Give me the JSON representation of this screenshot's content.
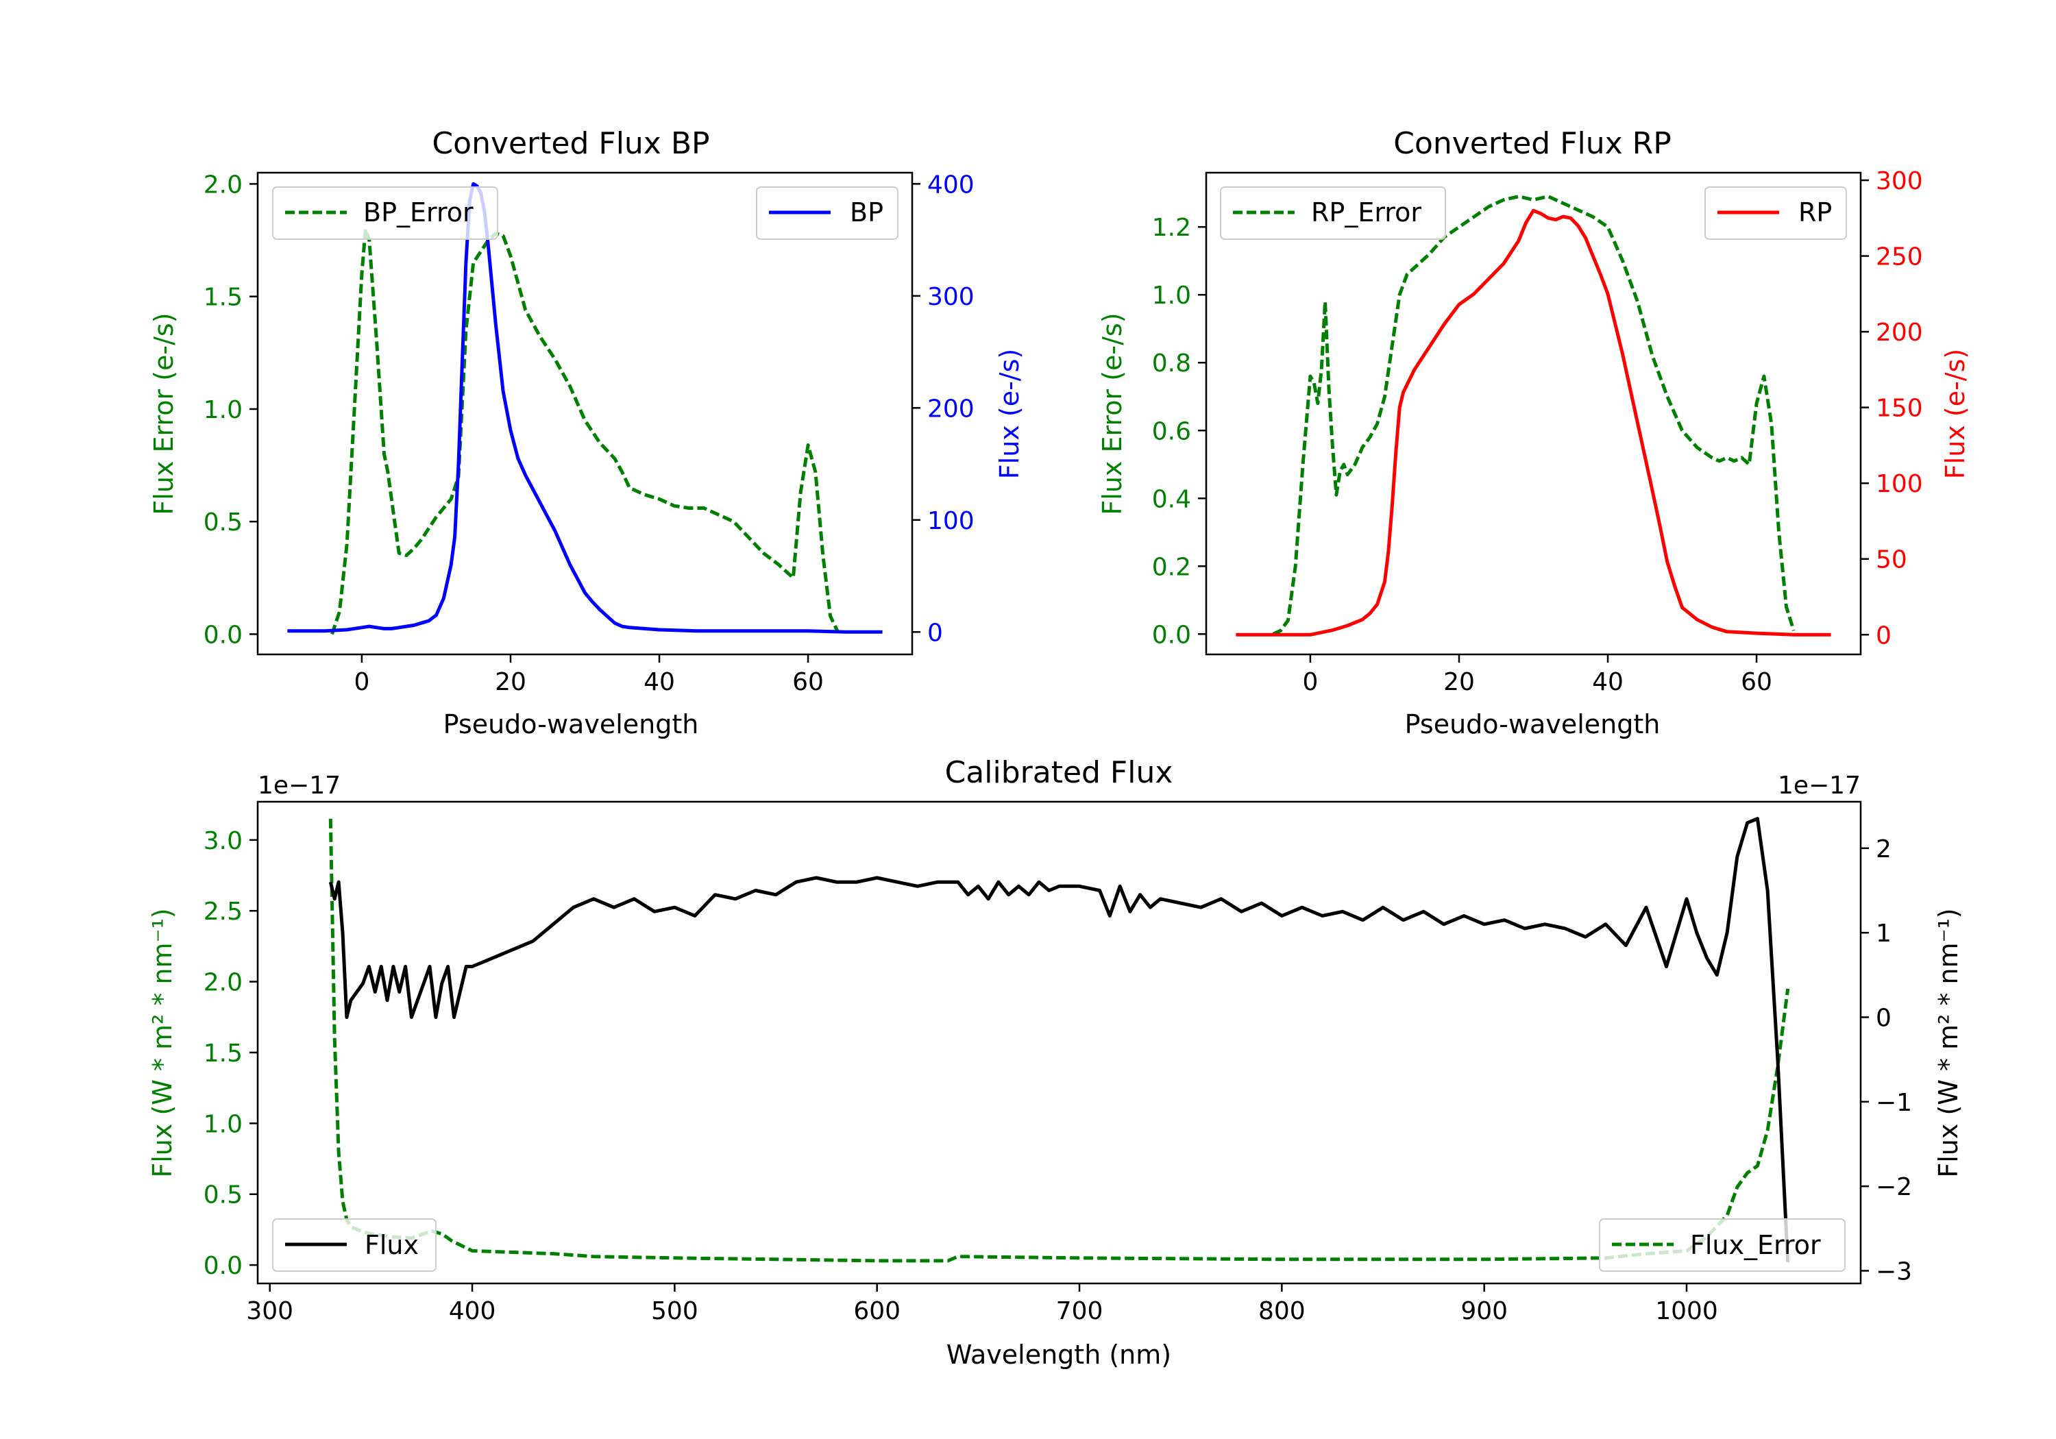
{
  "colors": {
    "green": "#008000",
    "blue": "#0000ff",
    "red": "#ff0000",
    "black": "#000000"
  },
  "chart_data": [
    {
      "id": "bp",
      "type": "line",
      "title": "Converted Flux BP",
      "xlabel": "Pseudo-wavelength",
      "ylabel_left": "Flux Error (e-/s)",
      "ylabel_right": "Flux (e-/s)",
      "xlim": [
        -14,
        74
      ],
      "ylim_left": [
        -0.09,
        2.05
      ],
      "ylim_right": [
        -20,
        410
      ],
      "xticks": [
        0,
        20,
        40,
        60
      ],
      "yticks_left": [
        0.0,
        0.5,
        1.0,
        1.5,
        2.0
      ],
      "yticks_left_labels": [
        "0.0",
        "0.5",
        "1.0",
        "1.5",
        "2.0"
      ],
      "yticks_right": [
        0,
        100,
        200,
        300,
        400
      ],
      "yticks_right_labels": [
        "0",
        "100",
        "200",
        "300",
        "400"
      ],
      "left_color": "green",
      "right_color": "blue",
      "legend_left": {
        "label": "BP_Error",
        "position": "upper-left"
      },
      "legend_right": {
        "label": "BP",
        "position": "upper-right"
      },
      "series": [
        {
          "name": "BP_Error",
          "axis": "left",
          "style": "dashed",
          "color": "green",
          "x": [
            -4,
            -3,
            -2,
            -1,
            0,
            0.5,
            1,
            2,
            3,
            3.5,
            4,
            5,
            6,
            7,
            8,
            10,
            12,
            13,
            14,
            15,
            16,
            17,
            18,
            19,
            20,
            22,
            24,
            26,
            28,
            30,
            32,
            34,
            35,
            36,
            38,
            40,
            42,
            44,
            46,
            48,
            50,
            52,
            54,
            56,
            57,
            58,
            59,
            60,
            61,
            62,
            63,
            64
          ],
          "values": [
            0,
            0.1,
            0.4,
            1.0,
            1.6,
            1.8,
            1.75,
            1.3,
            0.8,
            0.72,
            0.6,
            0.36,
            0.35,
            0.38,
            0.42,
            0.52,
            0.6,
            0.7,
            1.35,
            1.65,
            1.7,
            1.75,
            1.78,
            1.77,
            1.68,
            1.44,
            1.32,
            1.22,
            1.1,
            0.95,
            0.85,
            0.78,
            0.72,
            0.65,
            0.62,
            0.6,
            0.57,
            0.56,
            0.56,
            0.53,
            0.5,
            0.43,
            0.36,
            0.31,
            0.28,
            0.25,
            0.63,
            0.84,
            0.72,
            0.35,
            0.08,
            0.01
          ]
        },
        {
          "name": "BP",
          "axis": "right",
          "style": "solid",
          "color": "blue",
          "x": [
            -10,
            -5,
            -2,
            0,
            1,
            2,
            3,
            4,
            5,
            6,
            7,
            8,
            9,
            10,
            11,
            12,
            12.5,
            13,
            13.5,
            14,
            14.5,
            15,
            15.5,
            16,
            16.5,
            17,
            18,
            19,
            20,
            21,
            22,
            24,
            26,
            28,
            30,
            31,
            32,
            34,
            35,
            36,
            38,
            40,
            45,
            50,
            55,
            60,
            65,
            70
          ],
          "values": [
            1,
            1,
            2,
            4,
            5,
            4,
            3,
            3,
            4,
            5,
            6,
            8,
            10,
            15,
            30,
            60,
            85,
            150,
            240,
            330,
            385,
            400,
            398,
            392,
            375,
            345,
            275,
            215,
            180,
            155,
            140,
            115,
            90,
            60,
            35,
            27,
            20,
            8,
            5,
            4,
            3,
            2,
            1,
            1,
            1,
            1,
            0,
            0
          ]
        }
      ]
    },
    {
      "id": "rp",
      "type": "line",
      "title": "Converted Flux RP",
      "xlabel": "Pseudo-wavelength",
      "ylabel_left": "Flux Error (e-/s)",
      "ylabel_right": "Flux (e-/s)",
      "xlim": [
        -14,
        74
      ],
      "ylim_left": [
        -0.06,
        1.36
      ],
      "ylim_right": [
        -13,
        305
      ],
      "xticks": [
        0,
        20,
        40,
        60
      ],
      "yticks_left": [
        0.0,
        0.2,
        0.4,
        0.6,
        0.8,
        1.0,
        1.2
      ],
      "yticks_left_labels": [
        "0.0",
        "0.2",
        "0.4",
        "0.6",
        "0.8",
        "1.0",
        "1.2"
      ],
      "yticks_right": [
        0,
        50,
        100,
        150,
        200,
        250,
        300
      ],
      "yticks_right_labels": [
        "0",
        "50",
        "100",
        "150",
        "200",
        "250",
        "300"
      ],
      "left_color": "green",
      "right_color": "red",
      "legend_left": {
        "label": "RP_Error",
        "position": "upper-left"
      },
      "legend_right": {
        "label": "RP",
        "position": "upper-right"
      },
      "series": [
        {
          "name": "RP_Error",
          "axis": "left",
          "style": "dashed",
          "color": "green",
          "x": [
            -5,
            -4,
            -3,
            -2,
            -1,
            0,
            0.5,
            1,
            1.5,
            2,
            2.5,
            3,
            3.5,
            4,
            4.5,
            5,
            6,
            7,
            8,
            9,
            10,
            11,
            12,
            13,
            14,
            16,
            18,
            20,
            22,
            24,
            26,
            28,
            30,
            32,
            34,
            36,
            38,
            40,
            42,
            44,
            46,
            48,
            50,
            52,
            54,
            55,
            56,
            57,
            58,
            59,
            60,
            61,
            62,
            63,
            64,
            65
          ],
          "values": [
            0,
            0.01,
            0.04,
            0.2,
            0.5,
            0.76,
            0.74,
            0.68,
            0.78,
            0.98,
            0.72,
            0.55,
            0.41,
            0.48,
            0.5,
            0.47,
            0.5,
            0.55,
            0.58,
            0.62,
            0.7,
            0.85,
            1.0,
            1.06,
            1.08,
            1.12,
            1.17,
            1.2,
            1.23,
            1.26,
            1.28,
            1.29,
            1.28,
            1.29,
            1.27,
            1.25,
            1.23,
            1.2,
            1.1,
            0.98,
            0.82,
            0.7,
            0.6,
            0.55,
            0.52,
            0.51,
            0.52,
            0.51,
            0.52,
            0.5,
            0.68,
            0.76,
            0.62,
            0.3,
            0.08,
            0.01
          ]
        },
        {
          "name": "RP",
          "axis": "right",
          "style": "solid",
          "color": "red",
          "x": [
            -10,
            -5,
            0,
            3,
            5,
            7,
            8,
            9,
            10,
            10.5,
            11,
            11.5,
            12,
            12.5,
            13,
            14,
            16,
            18,
            20,
            22,
            24,
            26,
            28,
            29,
            30,
            31,
            32,
            33,
            34,
            35,
            36,
            37,
            38,
            39,
            40,
            42,
            44,
            46,
            47,
            48,
            49,
            50,
            52,
            54,
            56,
            60,
            65,
            70
          ],
          "values": [
            0,
            0,
            0,
            3,
            6,
            10,
            14,
            20,
            35,
            55,
            85,
            120,
            150,
            160,
            165,
            175,
            190,
            205,
            218,
            225,
            235,
            245,
            260,
            272,
            280,
            278,
            275,
            274,
            276,
            275,
            270,
            262,
            250,
            238,
            225,
            185,
            140,
            95,
            72,
            48,
            32,
            18,
            10,
            5,
            2,
            1,
            0,
            0
          ]
        }
      ]
    },
    {
      "id": "cal",
      "type": "line",
      "title": "Calibrated Flux",
      "xlabel": "Wavelength (nm)",
      "ylabel_left": "Flux (W * m² * nm⁻¹)",
      "ylabel_right": "Flux (W * m² * nm⁻¹)",
      "offset_left": "1e−17",
      "offset_right": "1e−17",
      "xlim": [
        294,
        1086
      ],
      "ylim_left": [
        -0.13,
        3.27
      ],
      "ylim_right": [
        -3.15,
        2.55
      ],
      "xticks": [
        300,
        400,
        500,
        600,
        700,
        800,
        900,
        1000
      ],
      "yticks_left": [
        0.0,
        0.5,
        1.0,
        1.5,
        2.0,
        2.5,
        3.0
      ],
      "yticks_left_labels": [
        "0.0",
        "0.5",
        "1.0",
        "1.5",
        "2.0",
        "2.5",
        "3.0"
      ],
      "yticks_right": [
        -3,
        -2,
        -1,
        0,
        1,
        2
      ],
      "yticks_right_labels": [
        "−3",
        "−2",
        "−1",
        "0",
        "1",
        "2"
      ],
      "left_color": "green",
      "right_color": "black",
      "legend_left": {
        "label": "Flux",
        "position": "lower-left"
      },
      "legend_right": {
        "label": "Flux_Error",
        "position": "lower-right"
      },
      "series": [
        {
          "name": "Flux_Error",
          "axis": "left",
          "style": "dashed",
          "color": "green",
          "x": [
            330,
            332,
            334,
            336,
            338,
            340,
            345,
            350,
            360,
            370,
            380,
            385,
            390,
            400,
            420,
            440,
            460,
            500,
            550,
            600,
            635,
            640,
            700,
            800,
            900,
            960,
            980,
            1000,
            1010,
            1020,
            1025,
            1030,
            1035,
            1040,
            1045,
            1050
          ],
          "values": [
            3.15,
            1.6,
            0.8,
            0.45,
            0.32,
            0.27,
            0.24,
            0.22,
            0.2,
            0.19,
            0.24,
            0.22,
            0.17,
            0.1,
            0.09,
            0.08,
            0.06,
            0.05,
            0.04,
            0.03,
            0.03,
            0.06,
            0.05,
            0.04,
            0.04,
            0.05,
            0.08,
            0.1,
            0.2,
            0.35,
            0.55,
            0.65,
            0.7,
            0.95,
            1.4,
            1.95
          ]
        },
        {
          "name": "Flux",
          "axis": "right",
          "style": "solid",
          "color": "black",
          "x": [
            330,
            332,
            334,
            336,
            338,
            340,
            343,
            346,
            349,
            352,
            355,
            358,
            361,
            364,
            367,
            370,
            373,
            376,
            379,
            382,
            385,
            388,
            391,
            394,
            397,
            400,
            410,
            420,
            430,
            440,
            450,
            460,
            470,
            480,
            490,
            500,
            510,
            520,
            530,
            540,
            550,
            560,
            570,
            580,
            590,
            600,
            610,
            620,
            630,
            640,
            645,
            650,
            655,
            660,
            665,
            670,
            675,
            680,
            685,
            690,
            700,
            710,
            715,
            720,
            725,
            730,
            735,
            740,
            750,
            760,
            770,
            780,
            790,
            800,
            810,
            820,
            830,
            840,
            850,
            860,
            870,
            880,
            890,
            900,
            910,
            920,
            930,
            940,
            950,
            960,
            970,
            980,
            990,
            1000,
            1005,
            1010,
            1015,
            1020,
            1025,
            1030,
            1035,
            1040,
            1045,
            1050
          ],
          "values": [
            1.6,
            1.4,
            1.6,
            1.0,
            0.0,
            0.2,
            0.3,
            0.4,
            0.6,
            0.3,
            0.6,
            0.2,
            0.6,
            0.3,
            0.6,
            0.0,
            0.2,
            0.4,
            0.6,
            0.0,
            0.4,
            0.6,
            0.0,
            0.3,
            0.6,
            0.6,
            0.7,
            0.8,
            0.9,
            1.1,
            1.3,
            1.4,
            1.3,
            1.4,
            1.25,
            1.3,
            1.2,
            1.45,
            1.4,
            1.5,
            1.45,
            1.6,
            1.65,
            1.6,
            1.6,
            1.65,
            1.6,
            1.55,
            1.6,
            1.6,
            1.45,
            1.55,
            1.4,
            1.6,
            1.45,
            1.55,
            1.45,
            1.6,
            1.5,
            1.55,
            1.55,
            1.5,
            1.2,
            1.55,
            1.25,
            1.45,
            1.3,
            1.4,
            1.35,
            1.3,
            1.4,
            1.25,
            1.35,
            1.2,
            1.3,
            1.2,
            1.25,
            1.15,
            1.3,
            1.15,
            1.25,
            1.1,
            1.2,
            1.1,
            1.15,
            1.05,
            1.1,
            1.05,
            0.95,
            1.1,
            0.85,
            1.3,
            0.6,
            1.4,
            1.0,
            0.7,
            0.5,
            1.0,
            1.9,
            2.3,
            2.35,
            1.5,
            -0.5,
            -2.9
          ]
        }
      ]
    }
  ]
}
